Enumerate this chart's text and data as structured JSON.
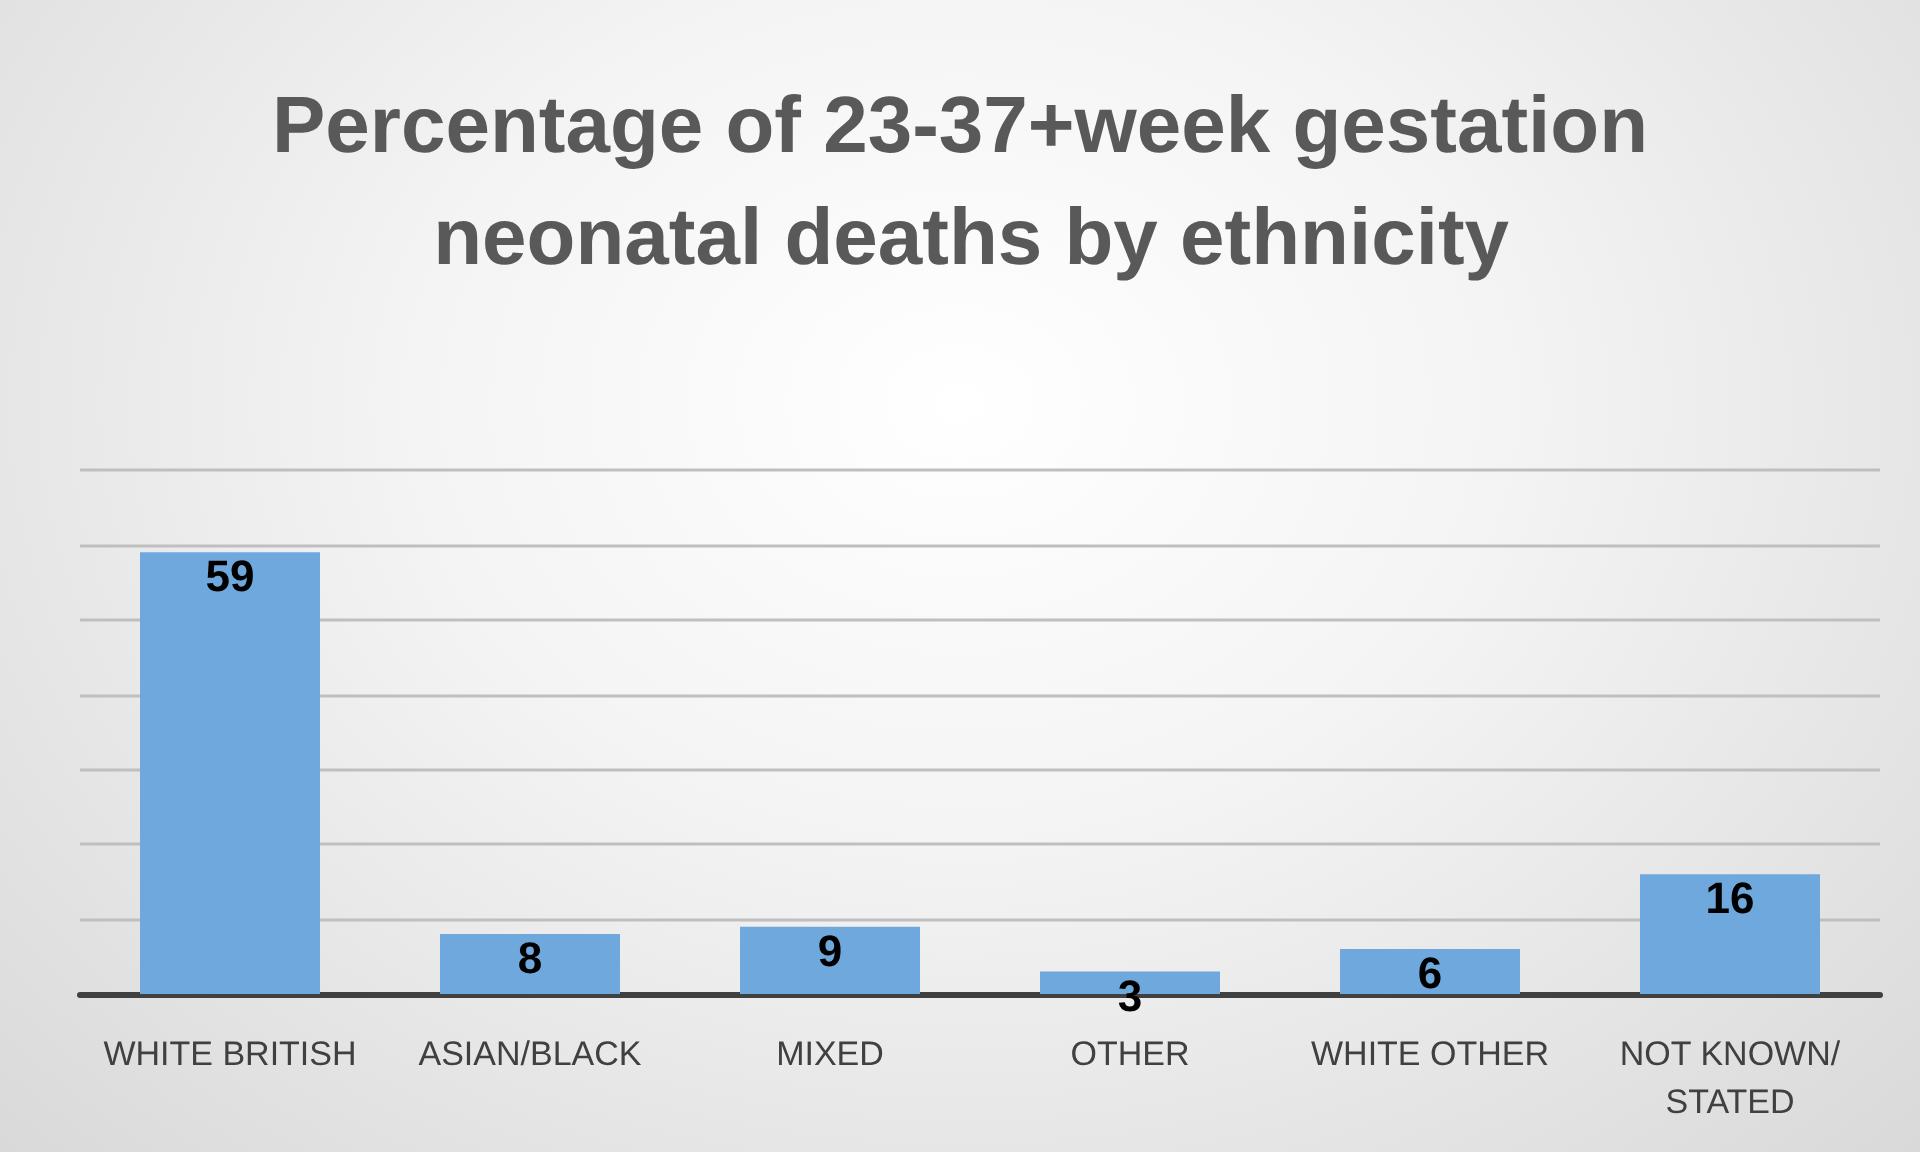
{
  "chart_data": {
    "type": "bar",
    "title": "Percentage of 23-37+week gestation neonatal deaths by ethnicity",
    "categories": [
      "WHITE BRITISH",
      "ASIAN/BLACK",
      "MIXED",
      "OTHER",
      "WHITE OTHER",
      "NOT KNOWN/STATED"
    ],
    "values": [
      59,
      8,
      9,
      3,
      6,
      16
    ],
    "color": "#6fa8dc",
    "ylim": [
      0,
      70
    ],
    "yticks": [
      {
        "value": 0,
        "label": null
      },
      {
        "value": 10,
        "label": null
      },
      {
        "value": 20,
        "label": null
      },
      {
        "value": 30,
        "label": null
      },
      {
        "value": 40,
        "label": null
      },
      {
        "value": 50,
        "label": null
      },
      {
        "value": 60,
        "label": null
      },
      {
        "value": 70,
        "label": null
      }
    ],
    "grid": "y",
    "data_labels": true,
    "tick_labels": "x"
  }
}
